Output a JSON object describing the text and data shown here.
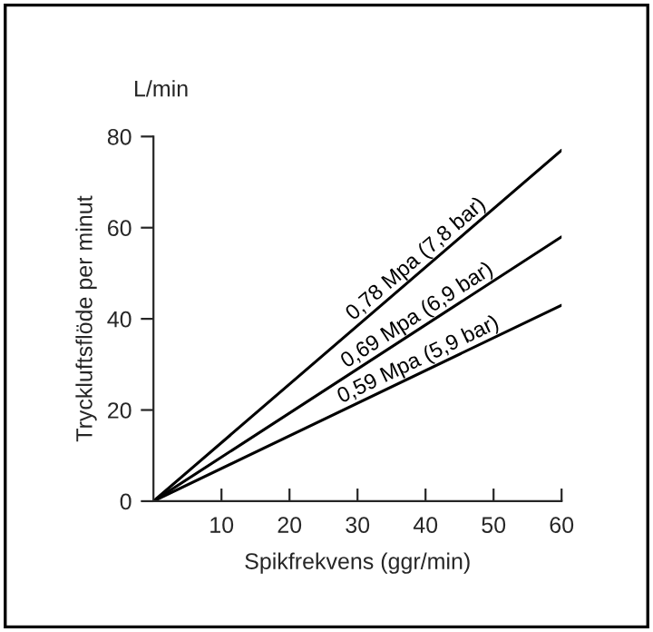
{
  "chart_data": {
    "type": "line",
    "ylabel": "Tryckluftsflöde per minut",
    "xlabel": "Spikfrekvens (ggr/min)",
    "annotations": [
      "L/min"
    ],
    "x": [
      0,
      60
    ],
    "series": [
      {
        "name": "0,78 Mpa (7,8 bar)",
        "color": "#000000",
        "values": [
          0,
          77
        ]
      },
      {
        "name": "0,69 Mpa (6,9 bar)",
        "color": "#000000",
        "values": [
          0,
          58
        ]
      },
      {
        "name": "0,59 Mpa (5,9 bar)",
        "color": "#000000",
        "values": [
          0,
          43
        ]
      }
    ],
    "xlim": [
      0,
      60
    ],
    "xticks": [
      10,
      20,
      30,
      40,
      50,
      60
    ],
    "ylim": [
      0,
      80
    ],
    "yticks": [
      0,
      20,
      40,
      60,
      80
    ],
    "grid": false,
    "legend": false,
    "marker": "none",
    "line_style": "solid"
  }
}
